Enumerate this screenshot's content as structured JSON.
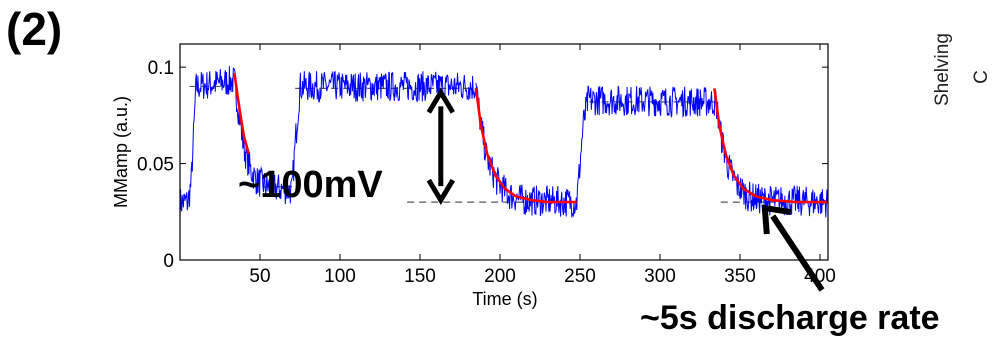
{
  "panel_label": "(2)",
  "side_text": [
    "Shelving",
    "C"
  ],
  "chart_data": {
    "type": "line",
    "xlabel": "Time (s)",
    "ylabel": "MMamp (a.u.)",
    "xlim": [
      0,
      405
    ],
    "ylim": [
      0,
      0.112
    ],
    "xticks": [
      50,
      100,
      150,
      200,
      250,
      300,
      350,
      400
    ],
    "xtick_labels": [
      "50",
      "100",
      "150",
      "200",
      "250",
      "300",
      "350",
      "400"
    ],
    "yticks": [
      0,
      0.05,
      0.1
    ],
    "ytick_labels": [
      "0",
      "0.05",
      "0.1"
    ],
    "grid": false,
    "series": [
      {
        "color": "#0000ff",
        "segments": [
          {
            "x": [
              0,
              5,
              7,
              10,
              34
            ],
            "y": [
              0.03,
              0.03,
              0.04,
              0.09,
              0.093
            ]
          },
          {
            "x": [
              34,
              37,
              40,
              44,
              48,
              55,
              70
            ],
            "y": [
              0.093,
              0.075,
              0.058,
              0.047,
              0.041,
              0.038,
              0.036
            ]
          },
          {
            "x": [
              70,
              72,
              75,
              185
            ],
            "y": [
              0.036,
              0.06,
              0.09,
              0.09
            ]
          },
          {
            "x": [
              185,
              188,
              192,
              198,
              205,
              215,
              248
            ],
            "y": [
              0.09,
              0.07,
              0.052,
              0.041,
              0.034,
              0.031,
              0.03
            ]
          },
          {
            "x": [
              248,
              252,
              255,
              335
            ],
            "y": [
              0.03,
              0.07,
              0.083,
              0.082
            ]
          },
          {
            "x": [
              335,
              338,
              342,
              348,
              355,
              365,
              405
            ],
            "y": [
              0.082,
              0.065,
              0.05,
              0.039,
              0.033,
              0.031,
              0.03
            ]
          }
        ]
      },
      {
        "color": "#ff0000",
        "segments": [
          {
            "x": [
              34,
              36,
              38,
              40,
              43
            ],
            "y": [
              0.097,
              0.085,
              0.074,
              0.064,
              0.055
            ]
          },
          {
            "x": [
              185,
              188,
              192,
              197,
              203,
              210,
              220,
              230,
              248
            ],
            "y": [
              0.089,
              0.07,
              0.055,
              0.044,
              0.037,
              0.033,
              0.031,
              0.03,
              0.03
            ]
          },
          {
            "x": [
              334,
              337,
              341,
              346,
              352,
              360,
              370,
              385,
              405
            ],
            "y": [
              0.089,
              0.07,
              0.055,
              0.044,
              0.037,
              0.033,
              0.031,
              0.03,
              0.03
            ]
          }
        ]
      }
    ],
    "reference_lines": [
      {
        "x": [
          6,
          34
        ],
        "y": 0.09
      },
      {
        "x": [
          44,
          70
        ],
        "y": 0.038
      },
      {
        "x": [
          72,
          185
        ],
        "y": 0.089
      },
      {
        "x": [
          142,
          248
        ],
        "y": 0.03
      },
      {
        "x": [
          256,
          335
        ],
        "y": 0.082
      },
      {
        "x": [
          338,
          405
        ],
        "y": 0.03
      }
    ],
    "annotations": [
      {
        "text": "~100mV",
        "type": "double-arrow",
        "x": 163,
        "y_top": 0.089,
        "y_bottom": 0.03
      },
      {
        "text": "~5s discharge rate",
        "type": "arrow",
        "to_x": 363,
        "to_y": 0.029
      }
    ]
  }
}
